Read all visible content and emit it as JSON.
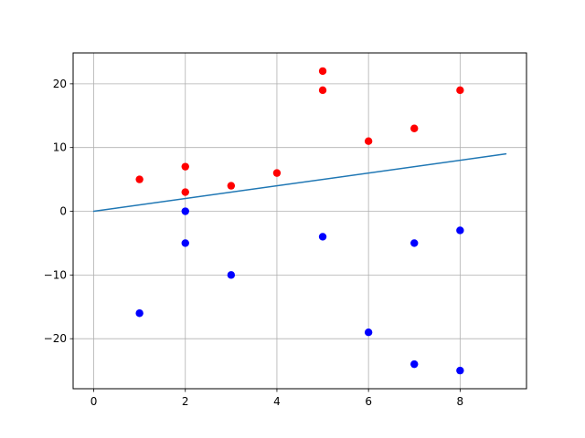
{
  "chart_data": {
    "type": "scatter",
    "title": "",
    "xlabel": "",
    "ylabel": "",
    "xlim": [
      -0.45,
      9.45
    ],
    "ylim": [
      -27.85,
      24.85
    ],
    "grid": true,
    "x_ticks": [
      0,
      2,
      4,
      6,
      8
    ],
    "y_ticks": [
      -20,
      -10,
      0,
      10,
      20
    ],
    "x_tick_labels": [
      "0",
      "2",
      "4",
      "6",
      "8"
    ],
    "y_tick_labels": [
      "−20",
      "−10",
      "0",
      "10",
      "20"
    ],
    "series": [
      {
        "type": "scatter",
        "color": "#ff0000",
        "points": [
          {
            "x": 1,
            "y": 5
          },
          {
            "x": 2,
            "y": 7
          },
          {
            "x": 2,
            "y": 3
          },
          {
            "x": 3,
            "y": 4
          },
          {
            "x": 4,
            "y": 6
          },
          {
            "x": 5,
            "y": 22
          },
          {
            "x": 5,
            "y": 19
          },
          {
            "x": 6,
            "y": 11
          },
          {
            "x": 7,
            "y": 13
          },
          {
            "x": 8,
            "y": 19
          }
        ]
      },
      {
        "type": "scatter",
        "color": "#0000ff",
        "points": [
          {
            "x": 1,
            "y": -16
          },
          {
            "x": 2,
            "y": 0
          },
          {
            "x": 2,
            "y": -5
          },
          {
            "x": 3,
            "y": -10
          },
          {
            "x": 5,
            "y": -4
          },
          {
            "x": 6,
            "y": -19
          },
          {
            "x": 7,
            "y": -5
          },
          {
            "x": 7,
            "y": -24
          },
          {
            "x": 8,
            "y": -3
          },
          {
            "x": 8,
            "y": -25
          }
        ]
      },
      {
        "type": "line",
        "color": "#1f77b4",
        "points": [
          {
            "x": 0,
            "y": 0
          },
          {
            "x": 9,
            "y": 9
          }
        ]
      }
    ]
  }
}
